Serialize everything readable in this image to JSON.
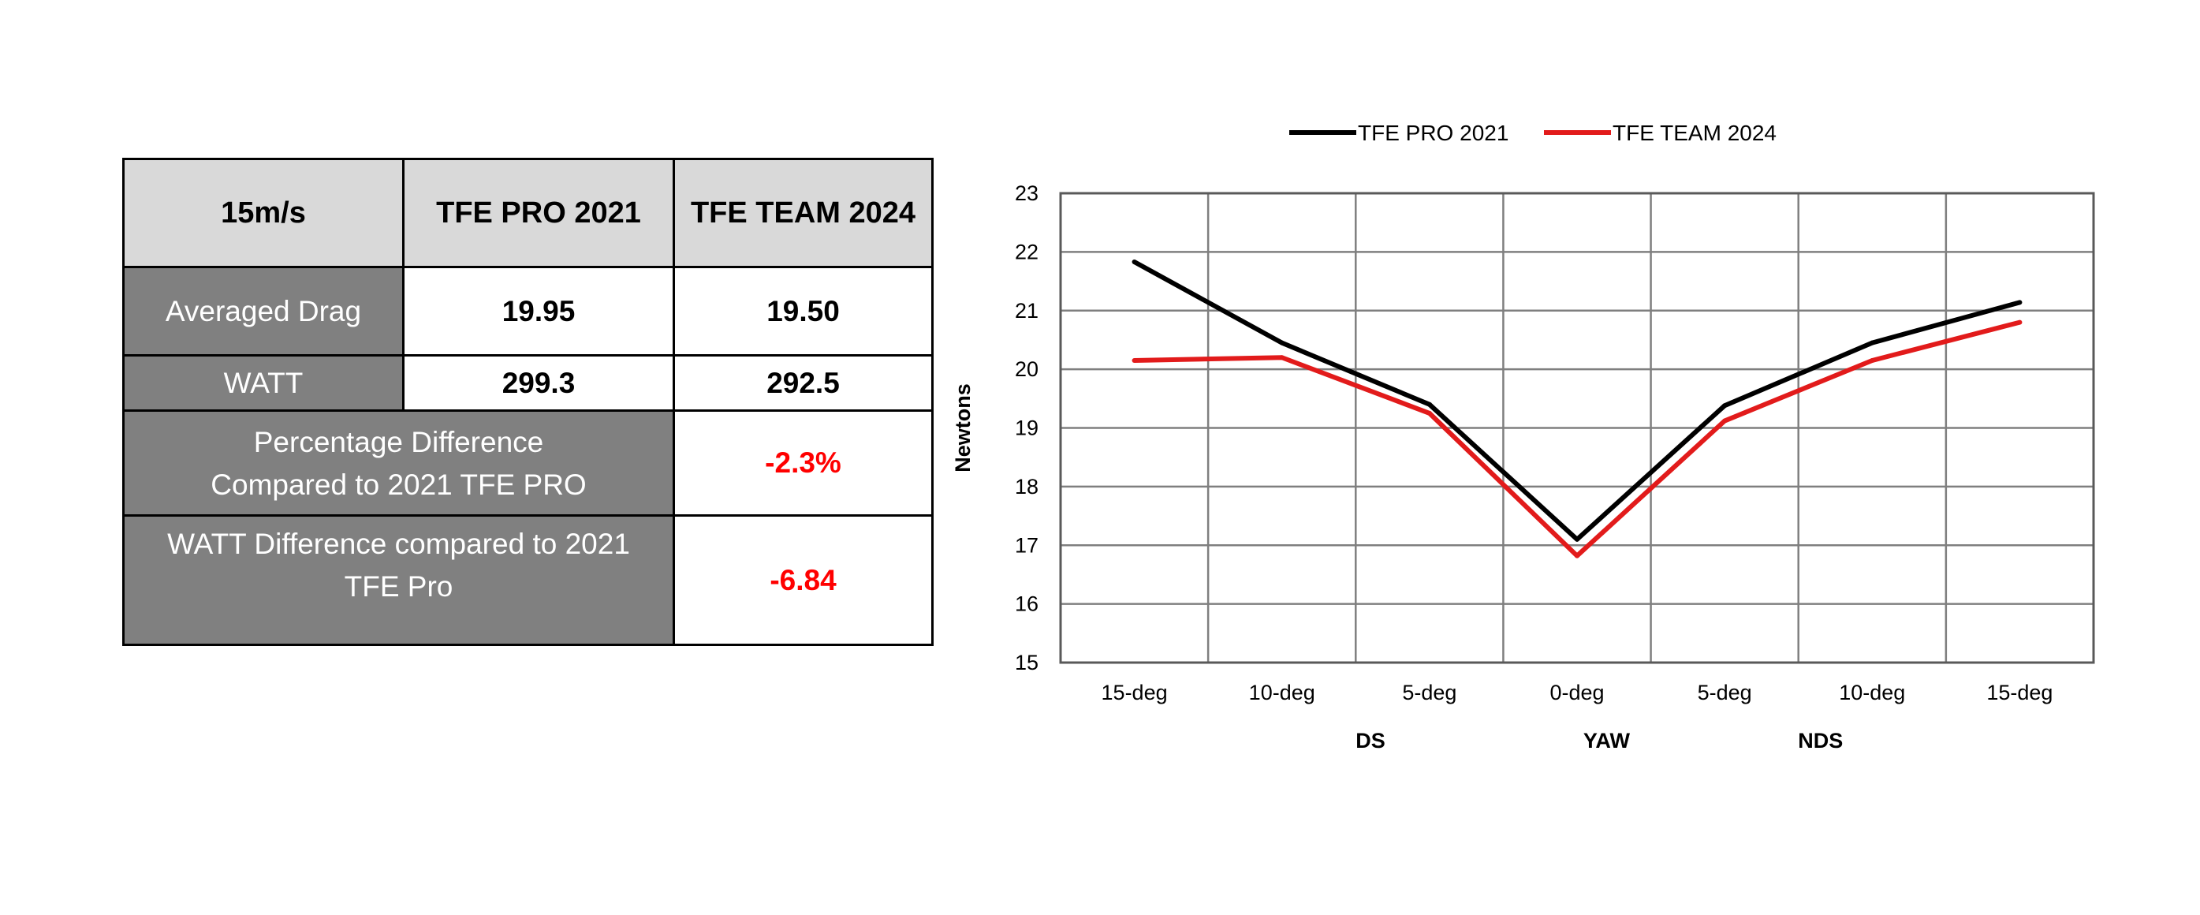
{
  "table": {
    "header": {
      "speed": "15m/s",
      "col1": "TFE PRO 2021",
      "col2": "TFE TEAM 2024"
    },
    "rows": {
      "averaged_drag": {
        "label": "Averaged Drag",
        "pro": "19.95",
        "team": "19.50"
      },
      "watt": {
        "label": "WATT",
        "pro": "299.3",
        "team": "292.5"
      },
      "percentage_difference": {
        "label_line1": "Percentage Difference",
        "label_line2": "Compared to 2021 TFE PRO",
        "value": "-2.3%"
      },
      "watt_difference": {
        "label_line1": "WATT Difference compared to 2021",
        "label_line2": "TFE Pro",
        "value": "-6.84"
      }
    },
    "colors": {
      "header_bg": "#d9d9d9",
      "label_bg": "#808080",
      "negative_text": "#ff0000"
    }
  },
  "chart_data": {
    "type": "line",
    "title": "",
    "x": [
      "15-deg",
      "10-deg",
      "5-deg",
      "0-deg",
      "5-deg",
      "10-deg",
      "15-deg"
    ],
    "x_groups": [
      "DS",
      "YAW",
      "NDS"
    ],
    "ylabel": "Newtons",
    "ylim": [
      15,
      23
    ],
    "yticks": [
      15,
      16,
      17,
      18,
      19,
      20,
      21,
      22,
      23
    ],
    "grid": true,
    "legend_position": "top",
    "series": [
      {
        "name": "TFE PRO 2021",
        "color": "#000000",
        "values": [
          21.83,
          20.45,
          19.4,
          17.1,
          19.38,
          20.45,
          21.14
        ]
      },
      {
        "name": "TFE TEAM 2024",
        "color": "#e21b1b",
        "values": [
          20.15,
          20.2,
          19.25,
          16.82,
          19.12,
          20.15,
          20.8
        ]
      }
    ]
  }
}
